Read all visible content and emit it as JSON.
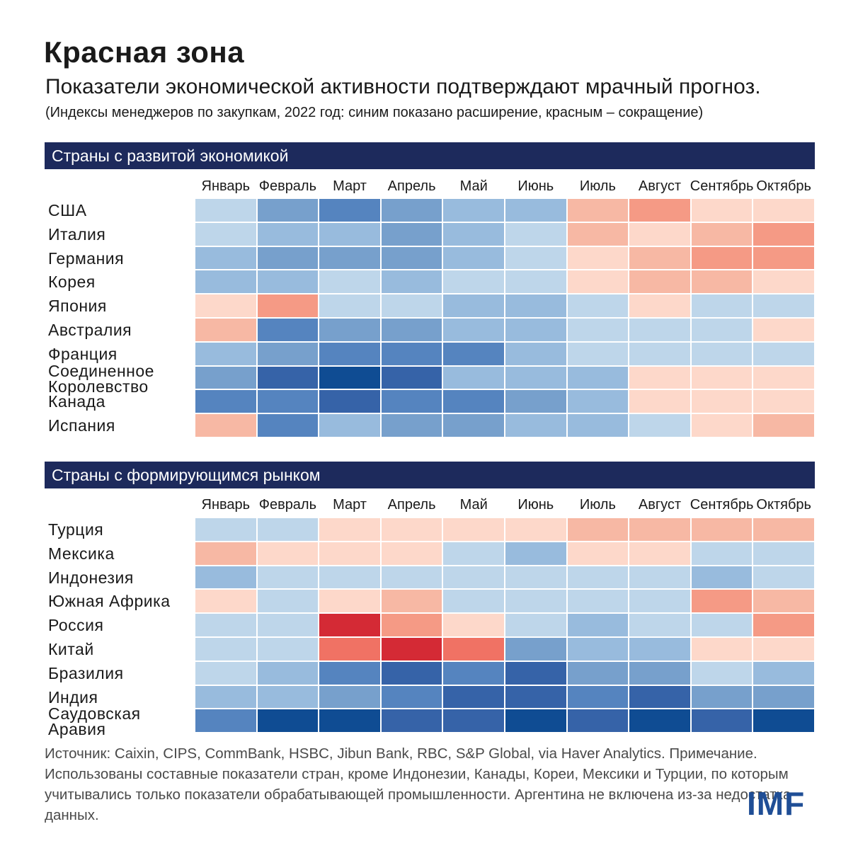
{
  "title": "Красная зона",
  "subtitle": "Показатели экономической активности подтверждают мрачный прогноз.",
  "note": "(Индексы менеджеров по закупкам, 2022 год: синим показано расширение, красным – сокращение)",
  "source": "Источник: Caixin, CIPS, CommBank, HSBC, Jibun Bank, RBC, S&P Global, via Haver Analytics. Примечание. Использованы составные показатели стран, кроме Индонезии, Канады, Кореи, Мексики и Турции, по которым учитывались только показатели обрабатывающей промышленности. Аргентина не включена из-за недостатка данных.",
  "logo": "IMF",
  "colors": {
    "scale": [
      "#d42a35",
      "#f07264",
      "#f59a85",
      "#f7b8a4",
      "#fdd8ca",
      "#bed6ea",
      "#98bbdd",
      "#77a0cc",
      "#5584bf",
      "#3663a8",
      "#0f4c93"
    ],
    "header_bar": "#1d2a5c",
    "logo": "#1f4e96"
  },
  "chart_data": [
    {
      "type": "heatmap",
      "title": "Страны с развитой экономикой",
      "categories": [
        "Январь",
        "Февраль",
        "Март",
        "Апрель",
        "Май",
        "Июнь",
        "Июль",
        "Август",
        "Сентябрь",
        "Октябрь"
      ],
      "rows": [
        {
          "label": "США",
          "values": [
            1,
            3,
            4,
            3,
            2,
            2,
            -2,
            -3,
            -1,
            -1
          ]
        },
        {
          "label": "Италия",
          "values": [
            1,
            2,
            2,
            3,
            2,
            1,
            -2,
            -1,
            -2,
            -3
          ]
        },
        {
          "label": "Германия",
          "values": [
            2,
            3,
            3,
            3,
            2,
            1,
            -1,
            -2,
            -3,
            -3
          ]
        },
        {
          "label": "Корея",
          "values": [
            2,
            2,
            1,
            2,
            1,
            1,
            -1,
            -2,
            -2,
            -1
          ]
        },
        {
          "label": "Япония",
          "values": [
            -1,
            -3,
            1,
            1,
            2,
            2,
            1,
            -1,
            1,
            1
          ]
        },
        {
          "label": "Австралия",
          "values": [
            -2,
            4,
            3,
            3,
            2,
            2,
            1,
            1,
            1,
            -1
          ]
        },
        {
          "label": "Франция",
          "values": [
            2,
            3,
            4,
            4,
            4,
            2,
            1,
            1,
            1,
            1
          ]
        },
        {
          "label": "Соединенное Королевство",
          "values": [
            3,
            5,
            6,
            5,
            2,
            2,
            2,
            -1,
            -1,
            -1
          ]
        },
        {
          "label": "Канада",
          "values": [
            4,
            4,
            5,
            4,
            4,
            3,
            2,
            -1,
            -1,
            -1
          ]
        },
        {
          "label": "Испания",
          "values": [
            -2,
            4,
            2,
            3,
            3,
            2,
            2,
            1,
            -1,
            -2
          ]
        }
      ]
    },
    {
      "type": "heatmap",
      "title": "Страны с формирующимся рынком",
      "categories": [
        "Январь",
        "Февраль",
        "Март",
        "Апрель",
        "Май",
        "Июнь",
        "Июль",
        "Август",
        "Сентябрь",
        "Октябрь"
      ],
      "rows": [
        {
          "label": "Турция",
          "values": [
            1,
            1,
            -1,
            -1,
            -1,
            -1,
            -2,
            -2,
            -2,
            -2
          ]
        },
        {
          "label": "Мексика",
          "values": [
            -2,
            -1,
            -1,
            -1,
            1,
            2,
            -1,
            -1,
            1,
            1
          ]
        },
        {
          "label": "Индонезия",
          "values": [
            2,
            1,
            1,
            1,
            1,
            1,
            1,
            1,
            2,
            1
          ]
        },
        {
          "label": "Южная Африка",
          "values": [
            -1,
            1,
            -1,
            -2,
            1,
            1,
            1,
            1,
            -3,
            -2
          ]
        },
        {
          "label": "Россия",
          "values": [
            1,
            1,
            -5,
            -3,
            -1,
            1,
            2,
            1,
            1,
            -3
          ]
        },
        {
          "label": "Китай",
          "values": [
            1,
            1,
            -4,
            -5,
            -4,
            3,
            2,
            2,
            -1,
            -1
          ]
        },
        {
          "label": "Бразилия",
          "values": [
            1,
            2,
            4,
            5,
            4,
            5,
            3,
            3,
            1,
            2
          ]
        },
        {
          "label": "Индия",
          "values": [
            2,
            2,
            3,
            4,
            5,
            5,
            4,
            5,
            3,
            3
          ]
        },
        {
          "label": "Саудовская Аравия",
          "values": [
            4,
            6,
            6,
            5,
            5,
            6,
            5,
            6,
            5,
            6
          ]
        }
      ]
    }
  ]
}
